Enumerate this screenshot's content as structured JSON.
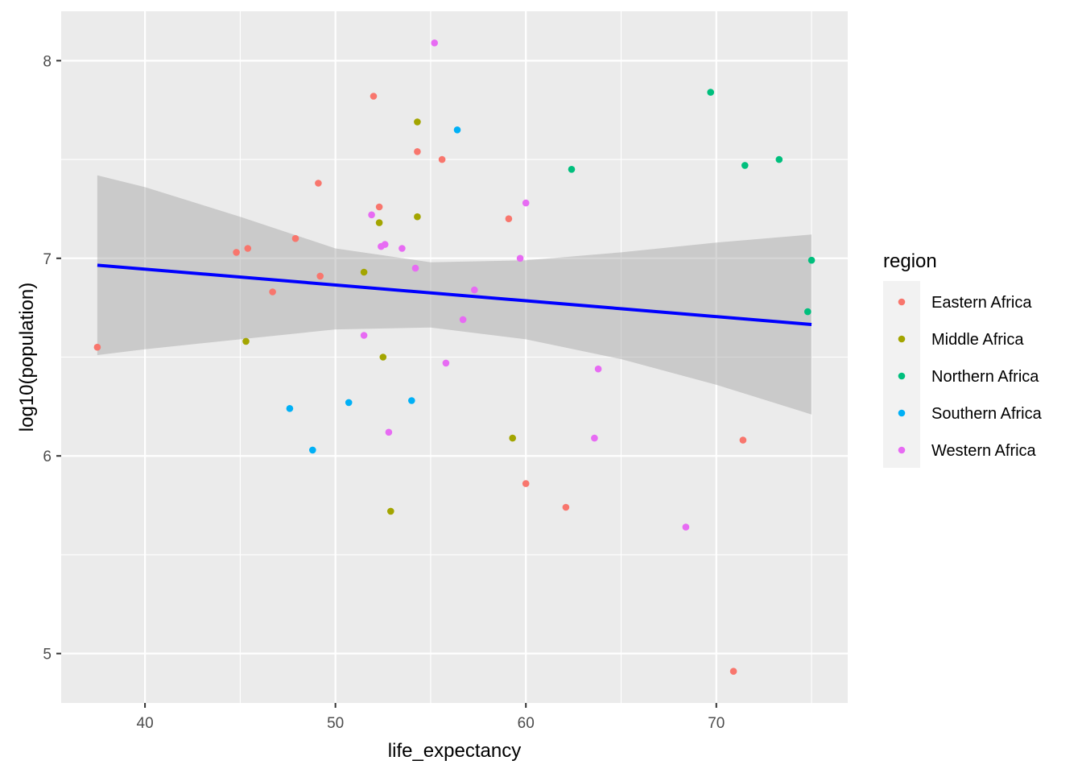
{
  "chart_data": {
    "type": "scatter",
    "xlabel": "life_expectancy",
    "ylabel": "log10(population)",
    "xlim": [
      35.6,
      76.9
    ],
    "ylim": [
      4.75,
      8.25
    ],
    "x_ticks": [
      40,
      50,
      60,
      70
    ],
    "y_ticks": [
      5,
      6,
      7,
      8
    ],
    "x_minor_ticks": [
      45,
      55,
      65,
      75
    ],
    "y_minor_ticks": [
      5.5,
      6.5,
      7.5
    ],
    "grid": true,
    "legend": {
      "title": "region",
      "position": "right"
    },
    "series": [
      {
        "name": "Eastern Africa",
        "color": "#F8766D",
        "points": [
          [
            37.5,
            6.55
          ],
          [
            44.8,
            7.03
          ],
          [
            45.4,
            7.05
          ],
          [
            46.7,
            6.83
          ],
          [
            47.9,
            7.1
          ],
          [
            49.1,
            7.38
          ],
          [
            49.2,
            6.91
          ],
          [
            52.0,
            7.82
          ],
          [
            52.3,
            7.26
          ],
          [
            54.3,
            7.54
          ],
          [
            55.6,
            7.5
          ],
          [
            59.1,
            7.2
          ],
          [
            60.0,
            5.86
          ],
          [
            62.1,
            5.74
          ],
          [
            70.9,
            4.91
          ],
          [
            71.4,
            6.08
          ]
        ]
      },
      {
        "name": "Middle Africa",
        "color": "#A3A500",
        "points": [
          [
            45.3,
            6.58
          ],
          [
            51.5,
            6.93
          ],
          [
            52.3,
            7.18
          ],
          [
            52.5,
            6.5
          ],
          [
            52.9,
            5.72
          ],
          [
            54.3,
            7.69
          ],
          [
            54.3,
            7.21
          ],
          [
            59.3,
            6.09
          ]
        ]
      },
      {
        "name": "Northern Africa",
        "color": "#00BF7D",
        "points": [
          [
            62.4,
            7.45
          ],
          [
            69.7,
            7.84
          ],
          [
            71.5,
            7.47
          ],
          [
            73.3,
            7.5
          ],
          [
            74.8,
            6.73
          ],
          [
            75.0,
            6.99
          ]
        ]
      },
      {
        "name": "Southern Africa",
        "color": "#00B0F6",
        "points": [
          [
            47.6,
            6.24
          ],
          [
            48.8,
            6.03
          ],
          [
            50.7,
            6.27
          ],
          [
            54.0,
            6.28
          ],
          [
            56.4,
            7.65
          ]
        ]
      },
      {
        "name": "Western Africa",
        "color": "#E76BF3",
        "points": [
          [
            51.5,
            6.61
          ],
          [
            51.9,
            7.22
          ],
          [
            52.4,
            7.06
          ],
          [
            52.6,
            7.07
          ],
          [
            52.8,
            6.12
          ],
          [
            53.5,
            7.05
          ],
          [
            54.2,
            6.95
          ],
          [
            55.2,
            8.09
          ],
          [
            55.8,
            6.47
          ],
          [
            56.7,
            6.69
          ],
          [
            57.3,
            6.84
          ],
          [
            59.7,
            7.0
          ],
          [
            60.0,
            7.28
          ],
          [
            63.6,
            6.09
          ],
          [
            63.8,
            6.44
          ],
          [
            68.4,
            5.64
          ]
        ]
      }
    ],
    "trend_line": {
      "color": "#0000FF",
      "x": [
        37.5,
        75.0
      ],
      "y": [
        6.965,
        6.665
      ]
    },
    "confidence_band": {
      "color": "#999999",
      "x": [
        37.5,
        40,
        45,
        50,
        55,
        60,
        65,
        70,
        75
      ],
      "upper": [
        7.42,
        7.36,
        7.21,
        7.05,
        6.98,
        6.99,
        7.03,
        7.08,
        7.12
      ],
      "lower": [
        6.51,
        6.54,
        6.59,
        6.64,
        6.65,
        6.59,
        6.49,
        6.36,
        6.21
      ]
    }
  }
}
